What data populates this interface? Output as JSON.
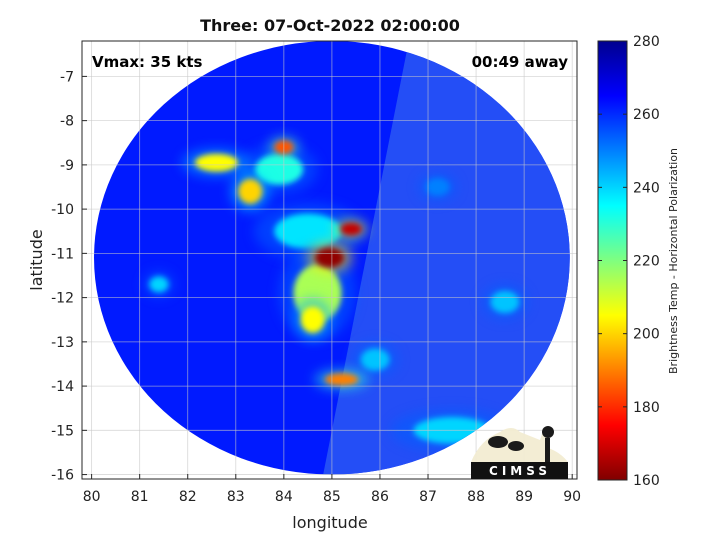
{
  "chart_data": {
    "type": "heatmap",
    "title": "Three: 07-Oct-2022 02:00:00",
    "xlabel": "longitude",
    "ylabel": "latitude",
    "xlim": [
      79.8,
      90.1
    ],
    "ylim": [
      -16.1,
      -6.2
    ],
    "xticks": [
      80,
      81,
      82,
      83,
      84,
      85,
      86,
      87,
      88,
      89,
      90
    ],
    "yticks": [
      -7,
      -8,
      -9,
      -10,
      -11,
      -12,
      -13,
      -14,
      -15,
      -16
    ],
    "grid": true,
    "swath": {
      "center_lon": 85.0,
      "center_lat": -11.1,
      "radius_lon": 4.95,
      "radius_lat": 4.9
    },
    "annotations": {
      "left": "Vmax: 35 kts",
      "right": "00:49 away"
    },
    "colorbar": {
      "label": "Brightness Temp - Horizontal Polarization",
      "min": 160,
      "max": 280,
      "ticks": [
        160,
        180,
        200,
        220,
        240,
        260,
        280
      ],
      "colormap": "jet"
    },
    "background_value": 262,
    "features": [
      {
        "lon": 84.95,
        "lat": -11.1,
        "value": 162,
        "rx": 0.3,
        "ry": 0.22
      },
      {
        "lon": 85.4,
        "lat": -10.45,
        "value": 168,
        "rx": 0.22,
        "ry": 0.14
      },
      {
        "lon": 84.0,
        "lat": -8.6,
        "value": 185,
        "rx": 0.2,
        "ry": 0.15
      },
      {
        "lon": 82.6,
        "lat": -8.95,
        "value": 205,
        "rx": 0.45,
        "ry": 0.2
      },
      {
        "lon": 83.3,
        "lat": -9.6,
        "value": 200,
        "rx": 0.25,
        "ry": 0.28
      },
      {
        "lon": 85.2,
        "lat": -13.85,
        "value": 190,
        "rx": 0.35,
        "ry": 0.14
      },
      {
        "lon": 84.7,
        "lat": -11.9,
        "value": 215,
        "rx": 0.5,
        "ry": 0.65
      },
      {
        "lon": 84.6,
        "lat": -12.5,
        "value": 205,
        "rx": 0.25,
        "ry": 0.3
      },
      {
        "lon": 83.9,
        "lat": -9.1,
        "value": 232,
        "rx": 0.5,
        "ry": 0.35
      },
      {
        "lon": 84.5,
        "lat": -10.5,
        "value": 238,
        "rx": 0.7,
        "ry": 0.4
      },
      {
        "lon": 85.9,
        "lat": -13.4,
        "value": 242,
        "rx": 0.3,
        "ry": 0.25
      },
      {
        "lon": 87.5,
        "lat": -15.0,
        "value": 240,
        "rx": 0.8,
        "ry": 0.3
      },
      {
        "lon": 81.4,
        "lat": -11.7,
        "value": 240,
        "rx": 0.2,
        "ry": 0.18
      },
      {
        "lon": 88.6,
        "lat": -12.1,
        "value": 242,
        "rx": 0.3,
        "ry": 0.25
      },
      {
        "lon": 87.2,
        "lat": -9.5,
        "value": 250,
        "rx": 0.25,
        "ry": 0.2
      }
    ],
    "logo": {
      "text": "CIMSS"
    }
  }
}
